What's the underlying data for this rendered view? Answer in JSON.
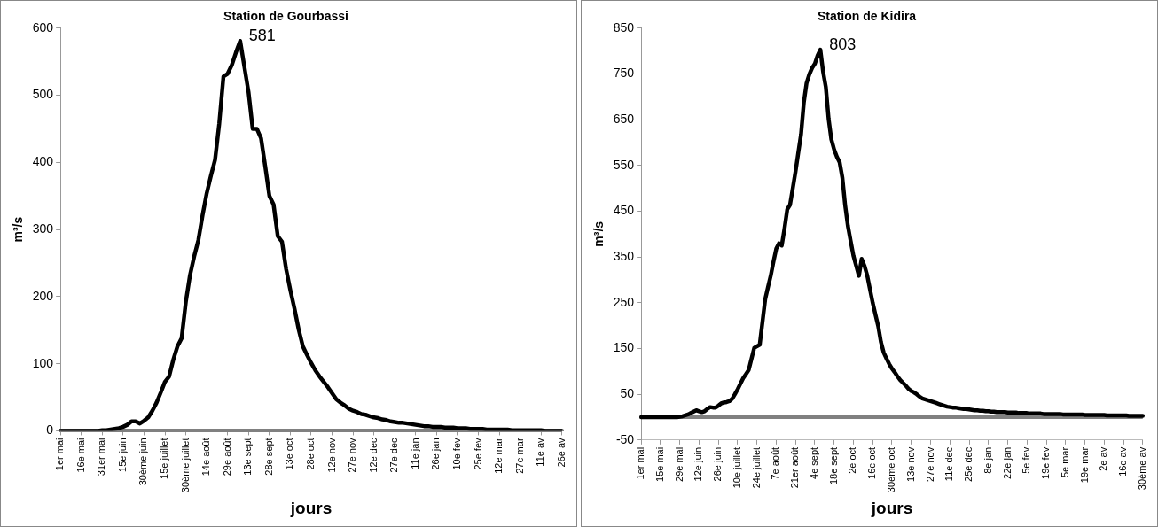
{
  "chart_data": [
    {
      "type": "line",
      "title": "Station de Gourbassi",
      "xlabel": "jours",
      "ylabel": "m³/s",
      "marker": "none",
      "categories": [
        "1er mai",
        null,
        null,
        null,
        null,
        "16e mai",
        null,
        null,
        null,
        null,
        "31er mai",
        null,
        null,
        null,
        null,
        "15e juin",
        null,
        null,
        null,
        null,
        "30ème juin",
        null,
        null,
        null,
        null,
        "15e juillet",
        null,
        null,
        null,
        null,
        "30ème juillet",
        null,
        null,
        null,
        null,
        "14e août",
        null,
        null,
        null,
        null,
        "29e août",
        null,
        null,
        null,
        null,
        "13e sept",
        null,
        null,
        null,
        null,
        "28e sept",
        null,
        null,
        null,
        null,
        "13e oct",
        null,
        null,
        null,
        null,
        "28e oct",
        null,
        null,
        null,
        null,
        "12e nov",
        null,
        null,
        null,
        null,
        "27e nov",
        null,
        null,
        null,
        null,
        "12e dec",
        null,
        null,
        null,
        null,
        "27e dec",
        null,
        null,
        null,
        null,
        "11e jan",
        null,
        null,
        null,
        null,
        "26e jan",
        null,
        null,
        null,
        null,
        "10e fev",
        null,
        null,
        null,
        null,
        "25e fev",
        null,
        null,
        null,
        null,
        "12e mar",
        null,
        null,
        null,
        null,
        "27e mar",
        null,
        null,
        null,
        null,
        "11e av",
        null,
        null,
        null,
        null,
        "26e av"
      ],
      "series": [
        {
          "color": "#000000",
          "values": [
            0,
            0,
            0,
            0,
            0,
            0,
            0,
            0,
            0,
            0,
            1,
            1,
            2,
            3,
            4,
            6,
            9,
            14,
            14,
            11,
            15,
            20,
            30,
            42,
            57,
            73,
            81,
            106,
            126,
            138,
            192,
            232,
            260,
            284,
            321,
            354,
            380,
            404,
            458,
            528,
            532,
            545,
            564,
            581,
            543,
            505,
            450,
            450,
            436,
            394,
            350,
            337,
            290,
            282,
            241,
            210,
            182,
            151,
            126,
            113,
            101,
            90,
            81,
            73,
            65,
            56,
            47,
            42,
            38,
            33,
            30,
            28,
            25,
            24,
            22,
            20,
            19,
            17,
            16,
            14,
            13,
            12,
            12,
            11,
            10,
            9,
            8,
            7,
            7,
            6,
            6,
            6,
            5,
            5,
            5,
            4,
            4,
            4,
            3,
            3,
            3,
            3,
            2,
            2,
            2,
            2,
            2,
            2,
            1,
            1,
            1,
            1,
            1,
            1,
            1,
            1,
            0,
            0,
            0,
            0,
            0
          ]
        }
      ],
      "ylim": [
        0,
        600
      ],
      "yticks": [
        0,
        100,
        200,
        300,
        400,
        500,
        600
      ],
      "value_labels": [
        null,
        null,
        null,
        null,
        null,
        null,
        null,
        null,
        null,
        null,
        null,
        null,
        null,
        null,
        null,
        null,
        null,
        null,
        null,
        null,
        null,
        null,
        null,
        null,
        null,
        null,
        null,
        null,
        null,
        null,
        null,
        null,
        null,
        null,
        null,
        null,
        null,
        null,
        null,
        null,
        null,
        null,
        null,
        "581",
        null,
        null,
        null,
        null,
        null,
        null,
        null,
        null,
        null,
        null,
        null,
        null,
        null,
        null,
        null,
        null,
        null,
        null,
        null,
        null,
        null,
        null,
        null,
        null,
        null,
        null,
        null,
        null,
        null,
        null,
        null,
        null,
        null,
        null,
        null,
        null,
        null,
        null,
        null,
        null,
        null,
        null,
        null,
        null,
        null,
        null,
        null,
        null,
        null,
        null,
        null,
        null,
        null,
        null,
        null,
        null,
        null,
        null,
        null,
        null,
        null,
        null,
        null,
        null,
        null,
        null,
        null,
        null,
        null,
        null,
        null,
        null,
        null,
        null,
        null,
        null,
        null
      ]
    },
    {
      "type": "line",
      "title": "Station de Kidira",
      "xlabel": "jours",
      "ylabel": "m³/s",
      "marker": "none",
      "categories": [
        "1er mai",
        null,
        null,
        null,
        null,
        null,
        null,
        "15e mai",
        null,
        null,
        null,
        null,
        null,
        null,
        "29e mai",
        null,
        null,
        null,
        null,
        null,
        null,
        "12e juin",
        null,
        null,
        null,
        null,
        null,
        null,
        "26e juin",
        null,
        null,
        null,
        null,
        null,
        null,
        "10e juillet",
        null,
        null,
        null,
        null,
        null,
        null,
        "24e juillet",
        null,
        null,
        null,
        null,
        null,
        null,
        "7e août",
        null,
        null,
        null,
        null,
        null,
        null,
        "21er août",
        null,
        null,
        null,
        null,
        null,
        null,
        "4e sept",
        null,
        null,
        null,
        null,
        null,
        null,
        "18e sept",
        null,
        null,
        null,
        null,
        null,
        null,
        "2e oct",
        null,
        null,
        null,
        null,
        null,
        null,
        "16e oct",
        null,
        null,
        null,
        null,
        null,
        null,
        "30ème oct",
        null,
        null,
        null,
        null,
        null,
        null,
        "13e nov",
        null,
        null,
        null,
        null,
        null,
        null,
        "27e nov",
        null,
        null,
        null,
        null,
        null,
        null,
        "11e dec",
        null,
        null,
        null,
        null,
        null,
        null,
        "25e dec",
        null,
        null,
        null,
        null,
        null,
        null,
        "8e jan",
        null,
        null,
        null,
        null,
        null,
        null,
        "22e jan",
        null,
        null,
        null,
        null,
        null,
        null,
        "5e fev",
        null,
        null,
        null,
        null,
        null,
        null,
        "19e fev",
        null,
        null,
        null,
        null,
        null,
        null,
        "5e mar",
        null,
        null,
        null,
        null,
        null,
        null,
        "19e mar",
        null,
        null,
        null,
        null,
        null,
        null,
        "2e av",
        null,
        null,
        null,
        null,
        null,
        null,
        "16e av",
        null,
        null,
        null,
        null,
        null,
        null,
        "30ème av"
      ],
      "series": [
        {
          "color": "#000000",
          "values": [
            0,
            0,
            0,
            0,
            0,
            0,
            0,
            0,
            0,
            0,
            0,
            0,
            0,
            0,
            1,
            2,
            4,
            6,
            9,
            12,
            15,
            13,
            11,
            13,
            18,
            22,
            21,
            21,
            25,
            30,
            32,
            33,
            35,
            40,
            50,
            61,
            73,
            85,
            94,
            103,
            127,
            151,
            155,
            158,
            208,
            258,
            284,
            309,
            340,
            368,
            380,
            375,
            412,
            454,
            464,
            500,
            537,
            578,
            618,
            687,
            730,
            749,
            763,
            772,
            790,
            803,
            755,
            721,
            652,
            607,
            585,
            569,
            557,
            523,
            463,
            418,
            385,
            353,
            331,
            309,
            346,
            331,
            310,
            280,
            250,
            224,
            199,
            164,
            141,
            128,
            116,
            106,
            98,
            89,
            81,
            75,
            69,
            62,
            57,
            54,
            50,
            45,
            41,
            39,
            37,
            35,
            33,
            31,
            29,
            27,
            25,
            23,
            22,
            21,
            21,
            20,
            19,
            18,
            18,
            17,
            16,
            15,
            15,
            14,
            14,
            13,
            13,
            12,
            12,
            11,
            11,
            11,
            11,
            10,
            10,
            10,
            10,
            9,
            9,
            9,
            9,
            8,
            8,
            8,
            8,
            8,
            7,
            7,
            7,
            7,
            7,
            7,
            7,
            6,
            6,
            6,
            6,
            6,
            6,
            6,
            6,
            5,
            5,
            5,
            5,
            5,
            5,
            5,
            5,
            4,
            4,
            4,
            4,
            4,
            4,
            4,
            4,
            3,
            3,
            3,
            3,
            3,
            3
          ]
        }
      ],
      "ylim": [
        -50,
        850
      ],
      "yticks": [
        -50,
        50,
        150,
        250,
        350,
        450,
        550,
        650,
        750,
        850
      ],
      "ref_lines": [
        {
          "axis": "y",
          "value": 0,
          "color": "#808080"
        }
      ],
      "value_labels": [
        null,
        null,
        null,
        null,
        null,
        null,
        null,
        null,
        null,
        null,
        null,
        null,
        null,
        null,
        null,
        null,
        null,
        null,
        null,
        null,
        null,
        null,
        null,
        null,
        null,
        null,
        null,
        null,
        null,
        null,
        null,
        null,
        null,
        null,
        null,
        null,
        null,
        null,
        null,
        null,
        null,
        null,
        null,
        null,
        null,
        null,
        null,
        null,
        null,
        null,
        null,
        null,
        null,
        null,
        null,
        null,
        null,
        null,
        null,
        null,
        null,
        null,
        null,
        null,
        null,
        "803",
        null,
        null,
        null,
        null,
        null,
        null,
        null,
        null,
        null,
        null,
        null,
        null,
        null,
        null,
        null,
        null,
        null,
        null,
        null,
        null,
        null,
        null,
        null,
        null,
        null,
        null,
        null,
        null,
        null,
        null,
        null,
        null,
        null,
        null,
        null,
        null,
        null,
        null,
        null,
        null,
        null,
        null,
        null,
        null,
        null,
        null,
        null,
        null,
        null,
        null,
        null,
        null,
        null,
        null,
        null,
        null,
        null,
        null,
        null,
        null,
        null,
        null,
        null,
        null,
        null,
        null,
        null,
        null,
        null,
        null,
        null,
        null,
        null,
        null,
        null,
        null,
        null,
        null,
        null,
        null,
        null,
        null,
        null,
        null,
        null,
        null,
        null,
        null,
        null,
        null,
        null,
        null,
        null,
        null,
        null,
        null,
        null,
        null,
        null,
        null,
        null,
        null,
        null,
        null,
        null,
        null,
        null,
        null,
        null,
        null,
        null,
        null,
        null,
        null,
        null,
        null,
        null
      ]
    }
  ]
}
